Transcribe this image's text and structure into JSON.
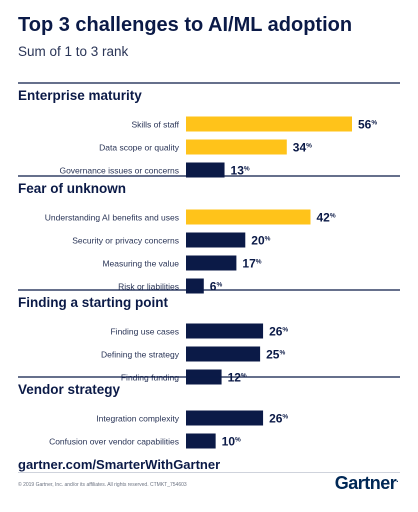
{
  "header": {
    "title": "Top 3 challenges to AI/ML adoption",
    "subtitle": "Sum of 1 to 3 rank"
  },
  "footer": {
    "link": "gartner.com/SmarterWithGartner",
    "copyright": "© 2019 Gartner, Inc. and/or its affiliates. All rights reserved. CTMKT_754603",
    "logo": "Gartner"
  },
  "colors": {
    "highlight": "#ffc31a",
    "default": "#0b1a47",
    "divider": "#0b1a47"
  },
  "chart_data": {
    "type": "bar",
    "orientation": "horizontal",
    "value_suffix": "%",
    "xlim": [
      0,
      56
    ],
    "groups": [
      {
        "name": "Enterprise maturity",
        "items": [
          {
            "label": "Skills of staff",
            "value": 56,
            "highlight": true
          },
          {
            "label": "Data scope or quality",
            "value": 34,
            "highlight": true
          },
          {
            "label": "Governance issues or concerns",
            "value": 13,
            "highlight": false
          }
        ]
      },
      {
        "name": "Fear of unknown",
        "items": [
          {
            "label": "Understanding AI benefits and uses",
            "value": 42,
            "highlight": true
          },
          {
            "label": "Security or privacy concerns",
            "value": 20,
            "highlight": false
          },
          {
            "label": "Measuring the value",
            "value": 17,
            "highlight": false
          },
          {
            "label": "Risk or liabilities",
            "value": 6,
            "highlight": false
          }
        ]
      },
      {
        "name": "Finding a starting point",
        "items": [
          {
            "label": "Finding use cases",
            "value": 26,
            "highlight": false
          },
          {
            "label": "Defining the strategy",
            "value": 25,
            "highlight": false
          },
          {
            "label": "Finding funding",
            "value": 12,
            "highlight": false
          }
        ]
      },
      {
        "name": "Vendor strategy",
        "items": [
          {
            "label": "Integration complexity",
            "value": 26,
            "highlight": false
          },
          {
            "label": "Confusion over vendor capabilities",
            "value": 10,
            "highlight": false
          }
        ]
      }
    ]
  }
}
